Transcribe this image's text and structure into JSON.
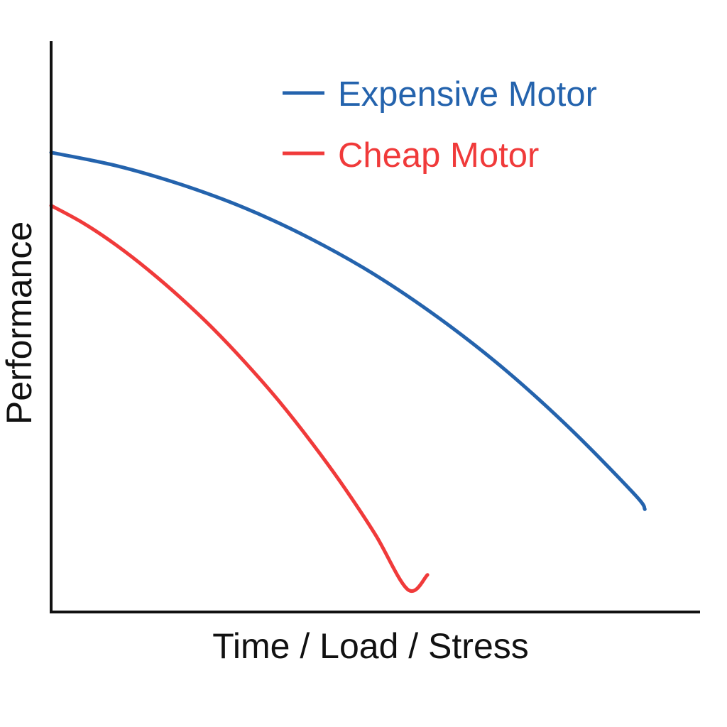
{
  "chart_data": {
    "type": "line",
    "title": "",
    "xlabel": "Time / Load / Stress",
    "ylabel": "Performance",
    "xlim": [
      0,
      100
    ],
    "ylim": [
      0,
      100
    ],
    "grid": false,
    "ticks": false,
    "legend_position": "top-right",
    "series": [
      {
        "name": "Expensive Motor",
        "color": "#2463ad",
        "x": [
          0,
          10,
          20,
          30,
          40,
          50,
          60,
          70,
          80,
          90,
          91.5
        ],
        "y": [
          80.5,
          78.2,
          74.9,
          70.7,
          65.4,
          59.0,
          51.3,
          42.4,
          32.1,
          20.5,
          18.0
        ]
      },
      {
        "name": "Cheap Motor",
        "color": "#f03a3a",
        "x": [
          0,
          5,
          10,
          15,
          20,
          25,
          30,
          35,
          40,
          45,
          50,
          55,
          58
        ],
        "y": [
          71.2,
          68.1,
          64.3,
          59.9,
          55.0,
          49.6,
          43.6,
          37.1,
          29.9,
          22.1,
          13.5,
          3.9,
          6.5
        ]
      }
    ]
  }
}
